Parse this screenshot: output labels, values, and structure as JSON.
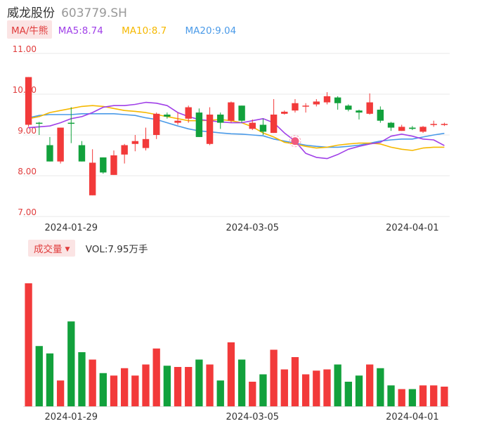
{
  "header": {
    "name": "威龙股份",
    "code": "603779.SH"
  },
  "ma_bar": {
    "button": "MA/牛熊",
    "ma5": "MA5:8.74",
    "ma10": "MA10:8.7",
    "ma20": "MA20:9.04"
  },
  "volume_bar": {
    "button": "成交量",
    "value": "VOL:7.95万手"
  },
  "colors": {
    "up": "#f23a3a",
    "down": "#12a13c",
    "ma5": "#a040e8",
    "ma10": "#f5b800",
    "ma20": "#4a9ae8",
    "grid": "#e8e8e8",
    "axis_label": "#e03c3c"
  },
  "chart_data": {
    "type": "candlestick",
    "ylim": [
      7.0,
      11.0
    ],
    "y_ticks": [
      "11.00",
      "10.00",
      "9.00",
      "8.00",
      "7.00"
    ],
    "x_tick_labels": [
      {
        "index": 4,
        "label": "2024-01-29"
      },
      {
        "index": 21,
        "label": "2024-03-05"
      },
      {
        "index": 36,
        "label": "2024-04-01"
      }
    ],
    "candles": [
      {
        "o": 9.25,
        "c": 10.42,
        "h": 10.42,
        "l": 9.2
      },
      {
        "o": 9.3,
        "c": 9.28,
        "h": 9.32,
        "l": 9.0
      },
      {
        "o": 8.75,
        "c": 8.35,
        "h": 8.95,
        "l": 8.35
      },
      {
        "o": 8.35,
        "c": 9.18,
        "h": 9.18,
        "l": 8.3
      },
      {
        "o": 9.3,
        "c": 9.28,
        "h": 9.68,
        "l": 8.8
      },
      {
        "o": 8.75,
        "c": 8.35,
        "h": 8.85,
        "l": 8.35
      },
      {
        "o": 7.52,
        "c": 8.32,
        "h": 8.65,
        "l": 7.52
      },
      {
        "o": 8.45,
        "c": 8.08,
        "h": 8.45,
        "l": 8.05
      },
      {
        "o": 8.02,
        "c": 8.5,
        "h": 8.62,
        "l": 8.02
      },
      {
        "o": 8.52,
        "c": 8.75,
        "h": 8.78,
        "l": 8.3
      },
      {
        "o": 8.78,
        "c": 8.85,
        "h": 9.0,
        "l": 8.6
      },
      {
        "o": 8.68,
        "c": 8.9,
        "h": 9.18,
        "l": 8.62
      },
      {
        "o": 9.0,
        "c": 9.52,
        "h": 9.55,
        "l": 8.9
      },
      {
        "o": 9.5,
        "c": 9.45,
        "h": 9.55,
        "l": 9.4
      },
      {
        "o": 9.3,
        "c": 9.35,
        "h": 9.55,
        "l": 9.25
      },
      {
        "o": 9.4,
        "c": 9.68,
        "h": 9.72,
        "l": 9.3
      },
      {
        "o": 9.55,
        "c": 8.95,
        "h": 9.65,
        "l": 8.95
      },
      {
        "o": 8.78,
        "c": 9.5,
        "h": 9.68,
        "l": 8.75
      },
      {
        "o": 9.5,
        "c": 9.3,
        "h": 9.55,
        "l": 9.15
      },
      {
        "o": 9.35,
        "c": 9.8,
        "h": 9.82,
        "l": 9.3
      },
      {
        "o": 9.72,
        "c": 9.35,
        "h": 9.72,
        "l": 9.3
      },
      {
        "o": 9.15,
        "c": 9.3,
        "h": 9.38,
        "l": 9.12
      },
      {
        "o": 9.25,
        "c": 9.08,
        "h": 9.4,
        "l": 9.0
      },
      {
        "o": 9.05,
        "c": 9.5,
        "h": 9.88,
        "l": 9.05
      },
      {
        "o": 9.52,
        "c": 9.57,
        "h": 9.6,
        "l": 9.5
      },
      {
        "o": 9.6,
        "c": 9.78,
        "h": 9.88,
        "l": 9.55
      },
      {
        "o": 9.7,
        "c": 9.72,
        "h": 9.78,
        "l": 9.55
      },
      {
        "o": 9.75,
        "c": 9.82,
        "h": 9.88,
        "l": 9.7
      },
      {
        "o": 9.8,
        "c": 9.95,
        "h": 10.05,
        "l": 9.75
      },
      {
        "o": 9.92,
        "c": 9.78,
        "h": 9.95,
        "l": 9.62
      },
      {
        "o": 9.72,
        "c": 9.62,
        "h": 9.75,
        "l": 9.58
      },
      {
        "o": 9.6,
        "c": 9.55,
        "h": 9.62,
        "l": 9.38
      },
      {
        "o": 9.52,
        "c": 9.8,
        "h": 10.02,
        "l": 9.5
      },
      {
        "o": 9.62,
        "c": 9.35,
        "h": 9.7,
        "l": 9.3
      },
      {
        "o": 9.3,
        "c": 9.18,
        "h": 9.32,
        "l": 9.1
      },
      {
        "o": 9.1,
        "c": 9.2,
        "h": 9.25,
        "l": 9.1
      },
      {
        "o": 9.18,
        "c": 9.15,
        "h": 9.22,
        "l": 9.12
      },
      {
        "o": 9.08,
        "c": 9.2,
        "h": 9.22,
        "l": 9.05
      },
      {
        "o": 9.25,
        "c": 9.27,
        "h": 9.35,
        "l": 9.2
      },
      {
        "o": 9.25,
        "c": 9.27,
        "h": 9.3,
        "l": 9.22
      }
    ],
    "ma5": [
      9.18,
      9.2,
      9.22,
      9.3,
      9.4,
      9.45,
      9.55,
      9.68,
      9.72,
      9.72,
      9.75,
      9.8,
      9.78,
      9.72,
      9.55,
      9.45,
      9.38,
      9.35,
      9.32,
      9.3,
      9.3,
      9.35,
      9.4,
      9.3,
      9.05,
      8.85,
      8.55,
      8.45,
      8.42,
      8.52,
      8.65,
      8.72,
      8.78,
      8.82,
      8.97,
      9.02,
      8.97,
      8.9,
      8.88,
      8.74
    ],
    "ma10": [
      9.4,
      9.45,
      9.55,
      9.6,
      9.65,
      9.7,
      9.72,
      9.7,
      9.65,
      9.6,
      9.58,
      9.55,
      9.5,
      9.45,
      9.4,
      9.35,
      9.35,
      9.36,
      9.38,
      9.35,
      9.3,
      9.2,
      9.05,
      8.95,
      8.82,
      8.78,
      8.72,
      8.68,
      8.7,
      8.75,
      8.78,
      8.8,
      8.8,
      8.78,
      8.7,
      8.65,
      8.62,
      8.68,
      8.7,
      8.7
    ],
    "ma20": [
      9.42,
      9.48,
      9.5,
      9.5,
      9.5,
      9.52,
      9.52,
      9.52,
      9.52,
      9.5,
      9.48,
      9.42,
      9.38,
      9.3,
      9.22,
      9.15,
      9.1,
      9.08,
      9.05,
      9.03,
      9.02,
      9.0,
      8.98,
      8.9,
      8.85,
      8.8,
      8.75,
      8.72,
      8.7,
      8.7,
      8.72,
      8.75,
      8.8,
      8.85,
      8.88,
      8.9,
      8.9,
      8.95,
      9.0,
      9.04
    ],
    "marker_index": 25,
    "volume": [
      100,
      49,
      43,
      21,
      69,
      44,
      38,
      27,
      25,
      31,
      25,
      34,
      47,
      33,
      32,
      32,
      38,
      34,
      21,
      52,
      38,
      20,
      26,
      46,
      30,
      40,
      26,
      29,
      30,
      34,
      20,
      25,
      34,
      31,
      17,
      14,
      14,
      17,
      17,
      16
    ]
  }
}
